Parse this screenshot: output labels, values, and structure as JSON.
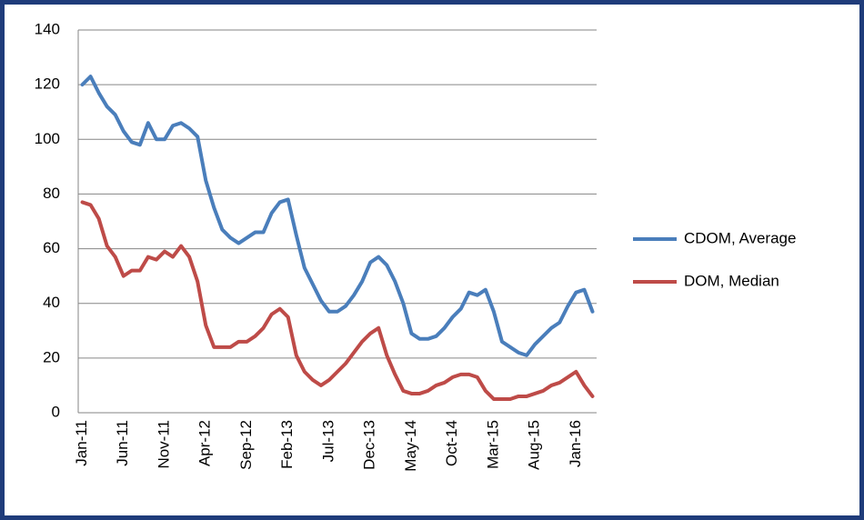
{
  "chart_data": {
    "type": "line",
    "categories": [
      "Jan-11",
      null,
      null,
      null,
      null,
      "Jun-11",
      null,
      null,
      null,
      null,
      "Nov-11",
      null,
      null,
      null,
      null,
      "Apr-12",
      null,
      null,
      null,
      null,
      "Sep-12",
      null,
      null,
      null,
      null,
      "Feb-13",
      null,
      null,
      null,
      null,
      "Jul-13",
      null,
      null,
      null,
      null,
      "Dec-13",
      null,
      null,
      null,
      null,
      "May-14",
      null,
      null,
      null,
      null,
      "Oct-14",
      null,
      null,
      null,
      null,
      "Mar-15",
      null,
      null,
      null,
      null,
      "Aug-15",
      null,
      null,
      null,
      null,
      "Jan-16",
      null,
      null
    ],
    "series": [
      {
        "name": "CDOM, Average",
        "color": "#4a7ebb",
        "values": [
          120,
          123,
          117,
          112,
          109,
          103,
          99,
          98,
          106,
          100,
          100,
          105,
          106,
          104,
          101,
          85,
          75,
          67,
          64,
          62,
          64,
          66,
          66,
          73,
          77,
          78,
          65,
          53,
          47,
          41,
          37,
          37,
          39,
          43,
          48,
          55,
          57,
          54,
          48,
          40,
          29,
          27,
          27,
          28,
          31,
          35,
          38,
          44,
          43,
          45,
          37,
          26,
          24,
          22,
          21,
          25,
          28,
          31,
          33,
          39,
          44,
          45,
          37
        ]
      },
      {
        "name": "DOM, Median",
        "color": "#be4b48",
        "values": [
          77,
          76,
          71,
          61,
          57,
          50,
          52,
          52,
          57,
          56,
          59,
          57,
          61,
          57,
          48,
          32,
          24,
          24,
          24,
          26,
          26,
          28,
          31,
          36,
          38,
          35,
          21,
          15,
          12,
          10,
          12,
          15,
          18,
          22,
          26,
          29,
          31,
          21,
          14,
          8,
          7,
          7,
          8,
          10,
          11,
          13,
          14,
          14,
          13,
          8,
          5,
          5,
          5,
          6,
          6,
          7,
          8,
          10,
          11,
          13,
          15,
          10,
          6
        ]
      }
    ],
    "ylim": [
      0,
      140
    ],
    "yticks": [
      0,
      20,
      40,
      60,
      80,
      100,
      120,
      140
    ],
    "grid": true,
    "legend": "right"
  }
}
